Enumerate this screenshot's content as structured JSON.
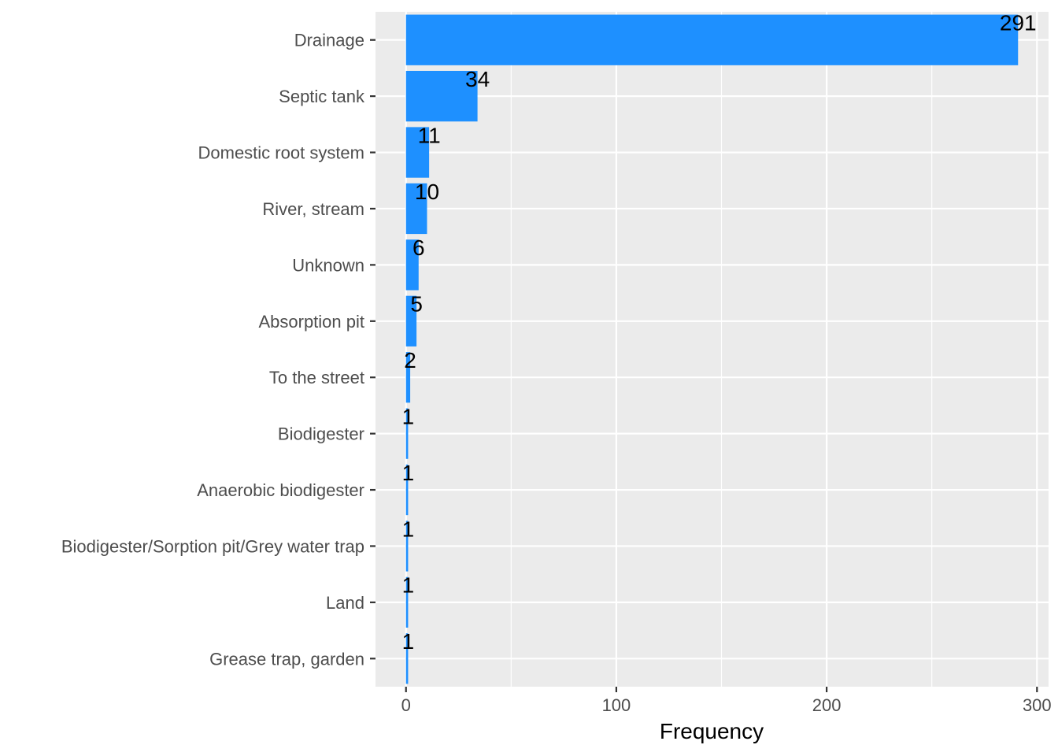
{
  "chart_data": {
    "type": "bar",
    "orientation": "horizontal",
    "categories": [
      "Drainage",
      "Septic tank",
      "Domestic root system",
      "River, stream",
      "Unknown",
      "Absorption pit",
      "To the street",
      "Biodigester",
      "Anaerobic biodigester",
      "Biodigester/Sorption pit/Grey water trap",
      "Land",
      "Grease trap, garden"
    ],
    "values": [
      291,
      34,
      11,
      10,
      6,
      5,
      2,
      1,
      1,
      1,
      1,
      1
    ],
    "data_labels": [
      "291",
      "34",
      "11",
      "10",
      "6",
      "5",
      "2",
      "1",
      "1",
      "1",
      "1",
      "1"
    ],
    "title": "",
    "xlabel": "Frequency",
    "ylabel": "",
    "xlim": [
      -14.5,
      305.5
    ],
    "x_ticks": [
      0,
      100,
      200,
      300
    ],
    "x_tick_labels": [
      "0",
      "100",
      "200",
      "300"
    ],
    "x_minor_ticks": [
      50,
      150,
      250
    ],
    "grid": true,
    "legend": "none",
    "colors": {
      "bar": "#1e90ff",
      "panel_background": "#ebebeb",
      "grid_line": "#ffffff",
      "axis_text": "#4d4d4d",
      "data_label": "#000000"
    }
  }
}
